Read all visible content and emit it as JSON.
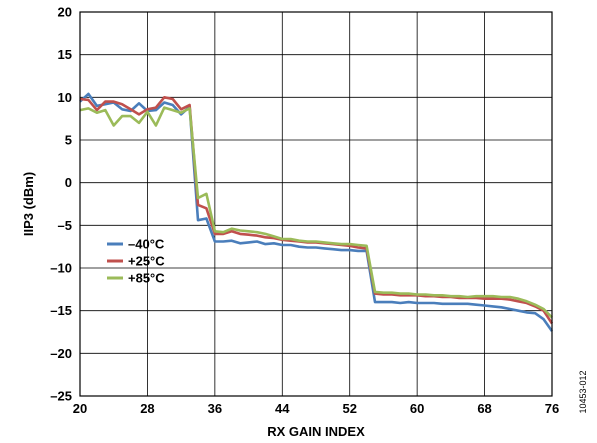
{
  "figure_id": "10453-012",
  "chart_data": {
    "type": "line",
    "title": "",
    "xlabel": "RX GAIN INDEX",
    "ylabel": "IIP3 (dBm)",
    "xlim": [
      20,
      76
    ],
    "ylim": [
      -25,
      20
    ],
    "xticks": [
      20,
      28,
      36,
      44,
      52,
      60,
      68,
      76
    ],
    "xtick_labels": [
      "20",
      "28",
      "36",
      "44",
      "52",
      "60",
      "68",
      "76"
    ],
    "yticks": [
      20,
      15,
      10,
      5,
      0,
      -5,
      -10,
      -15,
      -20,
      -25
    ],
    "ytick_labels": [
      "20",
      "15",
      "10",
      "5",
      "0",
      "–5",
      "–10",
      "–15",
      "–20",
      "–25"
    ],
    "grid": true,
    "legend_position": "left-middle",
    "series": [
      {
        "name": "–40°C",
        "color": "#4a7ebb",
        "x": [
          20,
          21,
          22,
          23,
          24,
          25,
          26,
          27,
          28,
          29,
          30,
          31,
          32,
          33,
          34,
          35,
          36,
          37,
          38,
          39,
          40,
          41,
          42,
          43,
          44,
          45,
          46,
          47,
          48,
          49,
          50,
          51,
          52,
          53,
          54,
          55,
          56,
          57,
          58,
          59,
          60,
          61,
          62,
          63,
          64,
          65,
          66,
          67,
          68,
          69,
          70,
          71,
          72,
          73,
          74,
          75,
          76
        ],
        "values": [
          9.5,
          10.4,
          9.0,
          9.2,
          9.4,
          8.6,
          8.4,
          9.3,
          8.4,
          8.5,
          9.4,
          9.1,
          8.0,
          8.9,
          -4.4,
          -4.2,
          -6.9,
          -6.9,
          -6.8,
          -7.1,
          -7.0,
          -6.9,
          -7.2,
          -7.1,
          -7.3,
          -7.3,
          -7.5,
          -7.6,
          -7.6,
          -7.7,
          -7.8,
          -7.9,
          -7.9,
          -8.0,
          -8.0,
          -14.0,
          -14.0,
          -14.0,
          -14.1,
          -14.0,
          -14.1,
          -14.1,
          -14.1,
          -14.2,
          -14.2,
          -14.2,
          -14.2,
          -14.3,
          -14.4,
          -14.5,
          -14.6,
          -14.8,
          -15.0,
          -15.2,
          -15.3,
          -16.0,
          -17.4
        ]
      },
      {
        "name": "+25°C",
        "color": "#c0504d",
        "x": [
          20,
          21,
          22,
          23,
          24,
          25,
          26,
          27,
          28,
          29,
          30,
          31,
          32,
          33,
          34,
          35,
          36,
          37,
          38,
          39,
          40,
          41,
          42,
          43,
          44,
          45,
          46,
          47,
          48,
          49,
          50,
          51,
          52,
          53,
          54,
          55,
          56,
          57,
          58,
          59,
          60,
          61,
          62,
          63,
          64,
          65,
          66,
          67,
          68,
          69,
          70,
          71,
          72,
          73,
          74,
          75,
          76
        ],
        "values": [
          9.8,
          9.7,
          8.5,
          9.5,
          9.5,
          9.2,
          8.6,
          8.0,
          8.6,
          8.8,
          10.0,
          9.8,
          8.6,
          9.1,
          -2.6,
          -3.0,
          -6.0,
          -6.0,
          -5.7,
          -6.0,
          -6.1,
          -6.2,
          -6.4,
          -6.5,
          -6.7,
          -6.8,
          -6.9,
          -7.0,
          -7.0,
          -7.1,
          -7.2,
          -7.3,
          -7.4,
          -7.6,
          -7.7,
          -13.0,
          -13.1,
          -13.1,
          -13.2,
          -13.2,
          -13.2,
          -13.3,
          -13.3,
          -13.4,
          -13.4,
          -13.5,
          -13.5,
          -13.5,
          -13.6,
          -13.6,
          -13.6,
          -13.7,
          -13.9,
          -14.1,
          -14.5,
          -15.0,
          -16.5
        ]
      },
      {
        "name": "+85°C",
        "color": "#9bbb59",
        "x": [
          20,
          21,
          22,
          23,
          24,
          25,
          26,
          27,
          28,
          29,
          30,
          31,
          32,
          33,
          34,
          35,
          36,
          37,
          38,
          39,
          40,
          41,
          42,
          43,
          44,
          45,
          46,
          47,
          48,
          49,
          50,
          51,
          52,
          53,
          54,
          55,
          56,
          57,
          58,
          59,
          60,
          61,
          62,
          63,
          64,
          65,
          66,
          67,
          68,
          69,
          70,
          71,
          72,
          73,
          74,
          75,
          76
        ],
        "values": [
          8.5,
          8.7,
          8.2,
          8.5,
          6.7,
          7.8,
          7.8,
          7.0,
          8.3,
          6.7,
          8.8,
          8.5,
          8.2,
          8.7,
          -1.8,
          -1.3,
          -5.7,
          -5.8,
          -5.4,
          -5.6,
          -5.7,
          -5.8,
          -6.0,
          -6.3,
          -6.6,
          -6.6,
          -6.8,
          -6.9,
          -6.9,
          -7.0,
          -7.1,
          -7.2,
          -7.2,
          -7.3,
          -7.4,
          -12.8,
          -12.9,
          -12.9,
          -13.0,
          -13.0,
          -13.1,
          -13.1,
          -13.2,
          -13.2,
          -13.3,
          -13.3,
          -13.4,
          -13.3,
          -13.3,
          -13.3,
          -13.4,
          -13.4,
          -13.6,
          -13.9,
          -14.3,
          -14.8,
          -15.8
        ]
      }
    ]
  }
}
